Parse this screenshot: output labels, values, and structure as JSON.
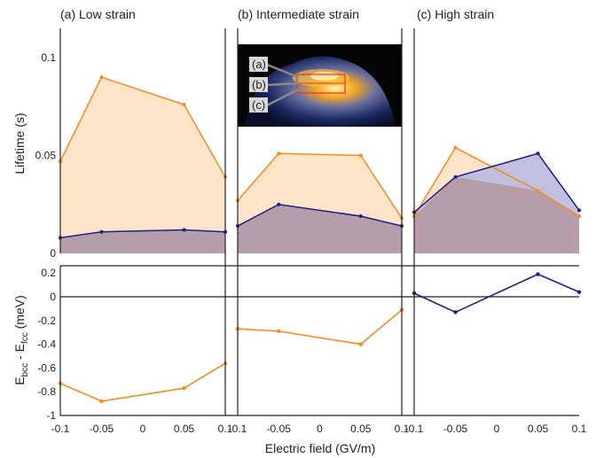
{
  "figure": {
    "xlabel": "Electric field (GV/m)",
    "ylabel_top": "Lifetime (s)",
    "ylabel_bottom_main": "E",
    "ylabel_bottom_sub1": "bcc",
    "ylabel_bottom_mid": " - E",
    "ylabel_bottom_sub2": "fcc",
    "ylabel_bottom_unit": " (meV)"
  },
  "colors": {
    "orange": "#f58a1f",
    "navy": "#1c1f82",
    "orange_fill": "#fde4c8",
    "mix_fill": "#b59ea9",
    "navy_fill": "#b9b9dd",
    "inset_box": "#e53030"
  },
  "inset": {
    "labels": [
      "(a)",
      "(b)",
      "(c)"
    ]
  },
  "chart_data": [
    {
      "type": "area",
      "title": "(a) Low strain",
      "x": [
        -0.1,
        -0.05,
        0.05,
        0.1
      ],
      "ylabel": "Lifetime (s)",
      "ylim": [
        0,
        0.11
      ],
      "yticks": [
        0,
        0.05,
        0.1
      ],
      "ytick_labels": [
        "0",
        "0.05",
        "0.1"
      ],
      "series": [
        {
          "color": "#f58a1f",
          "values": [
            0.047,
            0.09,
            0.076,
            0.039
          ]
        },
        {
          "color": "#1c1f82",
          "values": [
            0.008,
            0.011,
            0.012,
            0.011
          ]
        }
      ]
    },
    {
      "type": "area",
      "title": "(b) Intermediate strain",
      "x": [
        -0.1,
        -0.05,
        0.05,
        0.1
      ],
      "ylim": [
        0,
        0.11
      ],
      "series": [
        {
          "color": "#f58a1f",
          "values": [
            0.027,
            0.051,
            0.05,
            0.018
          ]
        },
        {
          "color": "#1c1f82",
          "values": [
            0.014,
            0.025,
            0.019,
            0.014
          ]
        }
      ]
    },
    {
      "type": "area",
      "title": "(c) High strain",
      "x": [
        -0.1,
        -0.05,
        0.05,
        0.1
      ],
      "ylim": [
        0,
        0.11
      ],
      "series": [
        {
          "color": "#f58a1f",
          "values": [
            0.019,
            0.054,
            0.032,
            0.019
          ]
        },
        {
          "color": "#1c1f82",
          "values": [
            0.021,
            0.039,
            0.051,
            0.022
          ]
        }
      ]
    },
    {
      "type": "line",
      "x": [
        -0.1,
        -0.05,
        0.05,
        0.1
      ],
      "xticks": [
        -0.1,
        -0.05,
        0,
        0.05,
        0.1
      ],
      "xtick_labels": [
        "-0.1",
        "-0.05",
        "0",
        "0.05",
        "0.1"
      ],
      "ylim": [
        -1,
        0.25
      ],
      "yticks": [
        -1,
        -0.8,
        -0.6,
        -0.4,
        -0.2,
        0,
        0.2
      ],
      "ytick_labels": [
        "-1",
        "-0.8",
        "-0.6",
        "-0.4",
        "-0.2",
        "0",
        "0.2"
      ],
      "series": [
        {
          "color": "#f58a1f",
          "values": [
            -0.73,
            -0.88,
            -0.77,
            -0.56
          ]
        }
      ]
    },
    {
      "type": "line",
      "x": [
        -0.1,
        -0.05,
        0.05,
        0.1
      ],
      "xticks": [
        -0.1,
        -0.05,
        0,
        0.05,
        0.1
      ],
      "xtick_labels": [
        "-0.1",
        "-0.05",
        "0",
        "0.05",
        "0.1"
      ],
      "ylim": [
        -1,
        0.25
      ],
      "series": [
        {
          "color": "#f58a1f",
          "values": [
            -0.27,
            -0.29,
            -0.4,
            -0.11
          ]
        }
      ]
    },
    {
      "type": "line",
      "x": [
        -0.1,
        -0.05,
        0.05,
        0.1
      ],
      "xticks": [
        -0.1,
        -0.05,
        0,
        0.05,
        0.1
      ],
      "xtick_labels": [
        "-0.1",
        "-0.05",
        "0",
        "0.05",
        "0.1"
      ],
      "ylim": [
        -1,
        0.25
      ],
      "series": [
        {
          "color": "#1c1f82",
          "values": [
            0.03,
            -0.13,
            0.19,
            0.04
          ]
        }
      ]
    }
  ]
}
